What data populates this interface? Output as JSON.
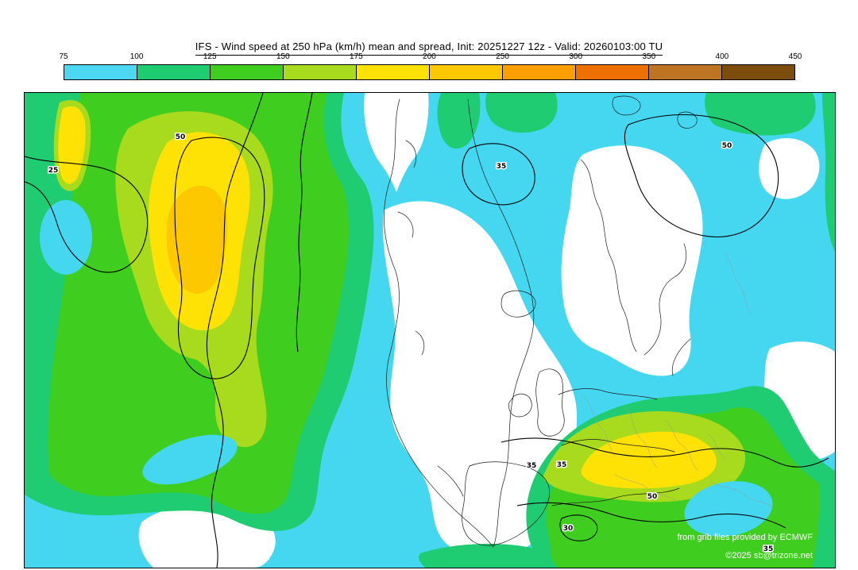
{
  "header": {
    "title": "IFS - Wind speed at 250 hPa (km/h) mean and spread, Init: 20251227 12z - Valid: 20260103:00 TU"
  },
  "colorbar": {
    "tick_labels": [
      "75",
      "100",
      "125",
      "150",
      "175",
      "200",
      "250",
      "300",
      "350",
      "400",
      "450"
    ],
    "segment_colors": [
      "#4cd8f2",
      "#1fcc72",
      "#3fcd1f",
      "#a8da1e",
      "#ffe205",
      "#fdc800",
      "#fd9e01",
      "#ee7000",
      "#bd7423",
      "#7d4d0d"
    ]
  },
  "map": {
    "contour_labels": [
      "25",
      "50",
      "35",
      "50",
      "35",
      "35",
      "50",
      "30",
      "35"
    ],
    "credits_line1": "from grib files provided by ECMWF",
    "credits_line2": "©2025 sb@trizone.net"
  },
  "chart_data": {
    "type": "heatmap",
    "title": "IFS - Wind speed at 250 hPa (km/h) mean and spread",
    "init": "20251227 12z",
    "valid": "20260103:00 TU",
    "units": "km/h",
    "scale_ticks": [
      75,
      100,
      125,
      150,
      175,
      200,
      250,
      300,
      350,
      400,
      450
    ],
    "scale_colors": [
      "#4cd8f2",
      "#1fcc72",
      "#3fcd1f",
      "#a8da1e",
      "#ffe205",
      "#fdc800",
      "#fd9e01",
      "#ee7000",
      "#bd7423",
      "#7d4d0d"
    ],
    "overlay": "black spread contours labeled 25-50 over North Atlantic / Europe domain",
    "notable_features": [
      "wind maximum 200-250 km/h northwest of map (yellow/gold core)",
      "secondary jet maximum 175-200 km/h over western/central Europe",
      "calm regions (<75 km/h, white) over Greenland, Scandinavia and Iberia"
    ]
  }
}
